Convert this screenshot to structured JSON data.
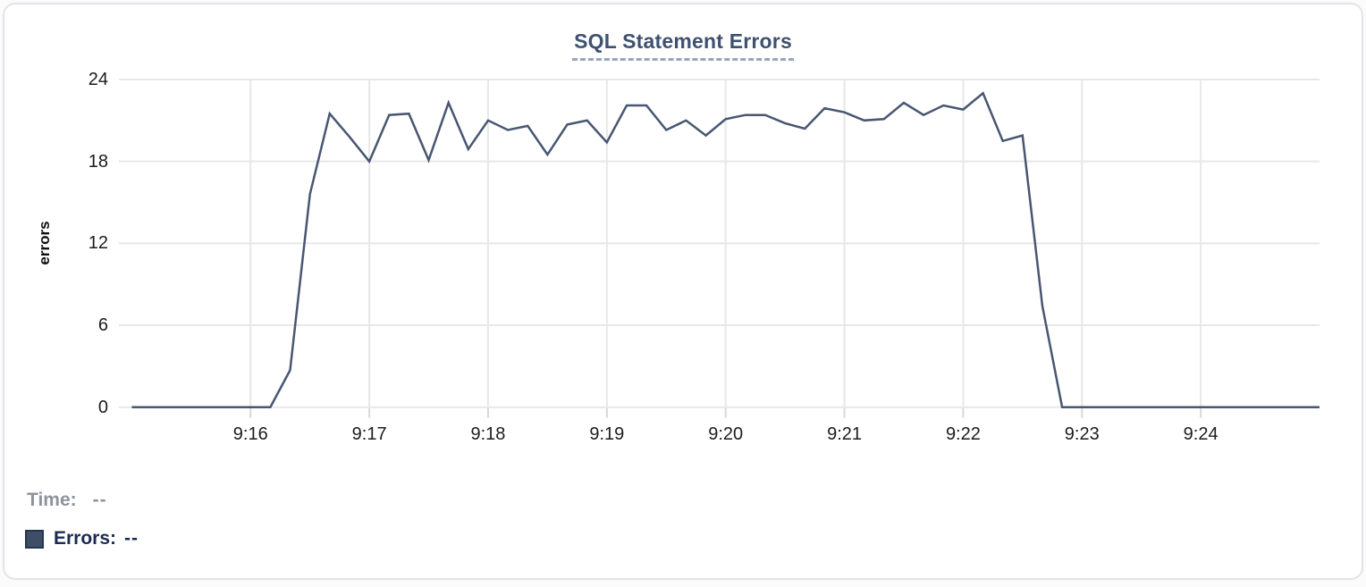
{
  "title": "SQL Statement Errors",
  "legend": {
    "time_label": "Time:",
    "time_value": "--",
    "errors_label": "Errors:",
    "errors_value": "--"
  },
  "colors": {
    "line": "#485672",
    "legend_marker": "#3e4d68",
    "legend_marker_border": "#27364f",
    "title_text": "#3e5170",
    "time_text": "#8d929c",
    "errors_text": "#1c2b50",
    "grid": "#e8e8ea",
    "tick_mark": "#d8d8d8",
    "tick_text": "#1c1c1c"
  },
  "chart_data": {
    "type": "line",
    "title": "SQL Statement Errors",
    "xlabel": "",
    "ylabel": "errors",
    "ylim": [
      0,
      24
    ],
    "y_ticks": [
      0,
      6,
      12,
      18,
      24
    ],
    "x_tick_labels": [
      "9:16",
      "9:17",
      "9:18",
      "9:19",
      "9:20",
      "9:21",
      "9:22",
      "9:23",
      "9:24"
    ],
    "x_start": "9:15:00",
    "x_end": "9:25:00",
    "x_interval_seconds": 10,
    "grid": true,
    "legend_position": "bottom-left",
    "line_color": "#485672",
    "series_name": "Errors",
    "points": [
      0,
      0,
      0,
      0,
      0,
      0,
      0,
      0,
      2.7,
      15.6,
      21.5,
      19.8,
      18,
      21.4,
      21.5,
      18.1,
      22.3,
      18.9,
      21,
      20.3,
      20.6,
      18.5,
      20.7,
      21,
      19.4,
      22.1,
      22.1,
      20.3,
      21,
      19.9,
      21.1,
      21.4,
      21.4,
      20.8,
      20.4,
      21.9,
      21.6,
      21,
      21.1,
      22.3,
      21.4,
      22.1,
      21.8,
      23,
      19.5,
      19.9,
      7.4,
      0,
      0,
      0,
      0,
      0,
      0,
      0,
      0,
      0,
      0,
      0,
      0,
      0,
      0
    ]
  }
}
